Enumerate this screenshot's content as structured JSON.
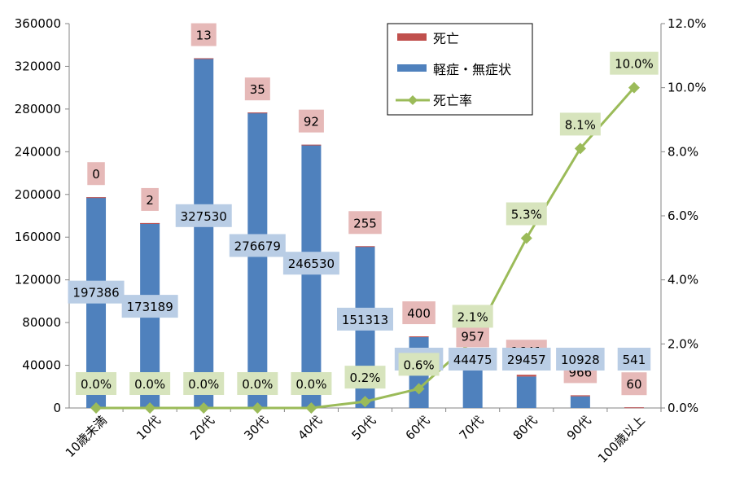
{
  "chart_data": {
    "type": "bar",
    "stacked": true,
    "categories": [
      "10歳未満",
      "10代",
      "20代",
      "30代",
      "40代",
      "50代",
      "60代",
      "70代",
      "80代",
      "90代",
      "100歳以上"
    ],
    "series": [
      {
        "name": "死亡",
        "type": "bar",
        "axis": "left",
        "color": "#c0504d",
        "values": [
          0,
          2,
          13,
          35,
          92,
          255,
          400,
          957,
          1641,
          966,
          60
        ]
      },
      {
        "name": "軽症・無症状",
        "type": "bar",
        "axis": "left",
        "color": "#4f81bd",
        "values": [
          197386,
          173189,
          327530,
          276679,
          246530,
          151313,
          66672,
          44475,
          29457,
          10928,
          541
        ]
      },
      {
        "name": "死亡率",
        "type": "line",
        "axis": "right",
        "color": "#9bbb59",
        "values": [
          0.0,
          0.0,
          0.0,
          0.0,
          0.0,
          0.2,
          0.6,
          2.1,
          5.3,
          8.1,
          10.0
        ],
        "labels": [
          "0.0%",
          "0.0%",
          "0.0%",
          "0.0%",
          "0.0%",
          "0.2%",
          "0.6%",
          "2.1%",
          "5.3%",
          "8.1%",
          "10.0%"
        ]
      }
    ],
    "y_left": {
      "min": 0,
      "max": 360000,
      "ticks": [
        "0",
        "40000",
        "80000",
        "120000",
        "160000",
        "200000",
        "240000",
        "280000",
        "320000",
        "360000"
      ]
    },
    "y_right": {
      "min": 0,
      "max": 12,
      "ticks": [
        "0.0%",
        "2.0%",
        "4.0%",
        "6.0%",
        "8.0%",
        "10.0%",
        "12.0%"
      ]
    },
    "legend_position": "top-right",
    "grid": false,
    "label_colors": {
      "death": "#e6b9b8",
      "mild": "#b9cde5",
      "rate": "#d7e4bd"
    }
  }
}
